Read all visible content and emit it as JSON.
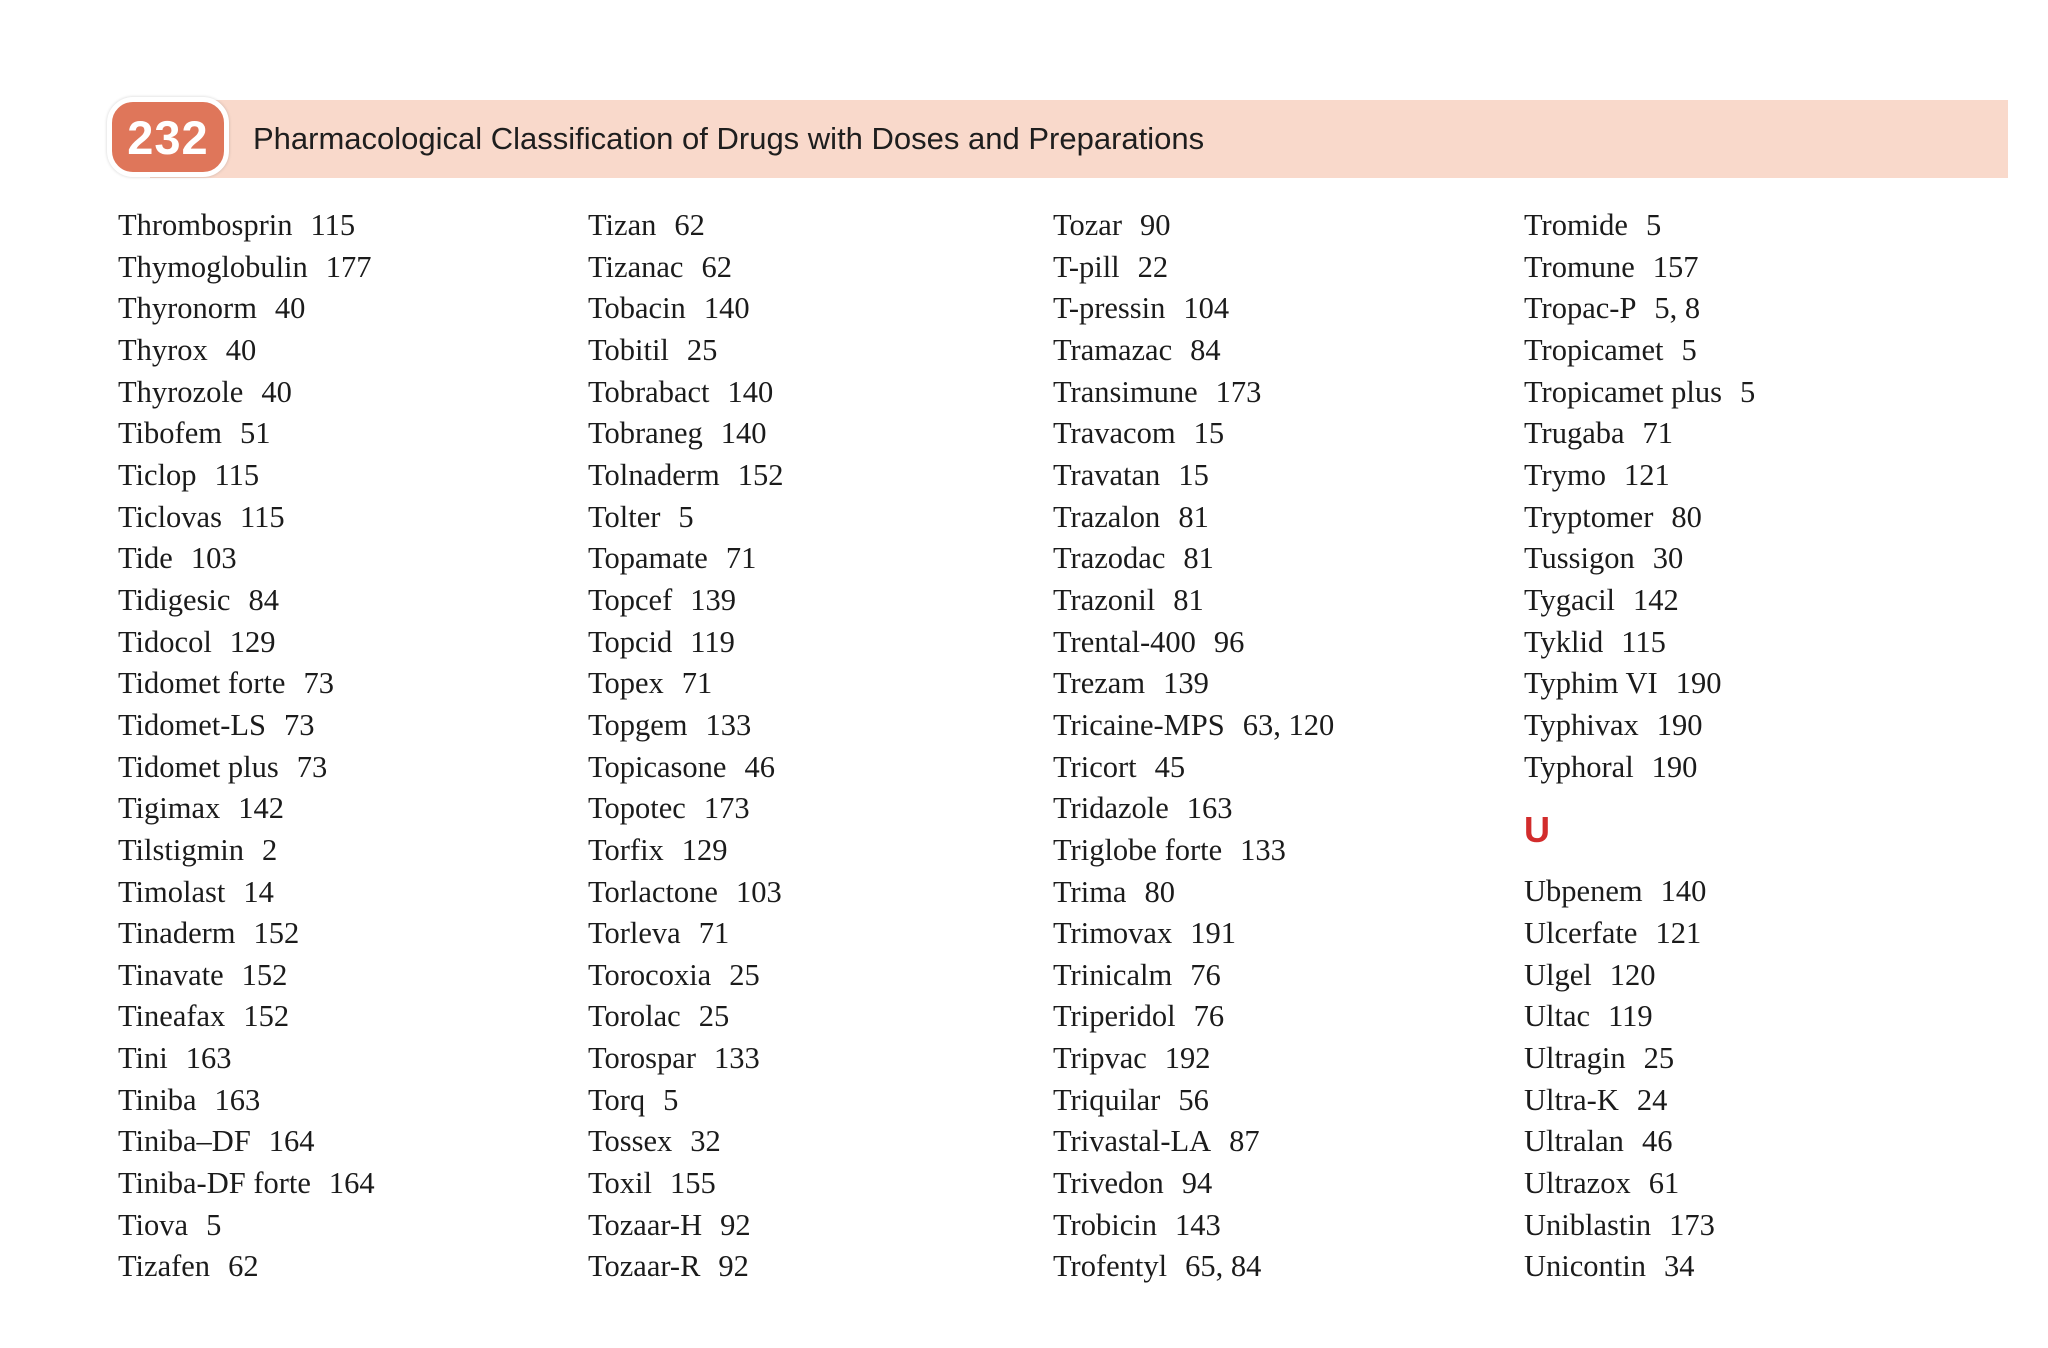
{
  "header": {
    "page_number": "232",
    "title": "Pharmacological Classification of Drugs with Doses and Preparations"
  },
  "colors": {
    "badge_bg": "#df765a",
    "header_bg": "#f9d9cb",
    "section_letter": "#d22c2c",
    "body_text": "#1b1b1b"
  },
  "index": {
    "columns": [
      {
        "entries": [
          {
            "name": "Thrombosprin",
            "page": "115"
          },
          {
            "name": "Thymoglobulin",
            "page": "177"
          },
          {
            "name": "Thyronorm",
            "page": "40"
          },
          {
            "name": "Thyrox",
            "page": "40"
          },
          {
            "name": "Thyrozole",
            "page": "40"
          },
          {
            "name": "Tibofem",
            "page": "51"
          },
          {
            "name": "Ticlop",
            "page": "115"
          },
          {
            "name": "Ticlovas",
            "page": "115"
          },
          {
            "name": "Tide",
            "page": "103"
          },
          {
            "name": "Tidigesic",
            "page": "84"
          },
          {
            "name": "Tidocol",
            "page": "129"
          },
          {
            "name": "Tidomet forte",
            "page": "73"
          },
          {
            "name": "Tidomet-LS",
            "page": "73"
          },
          {
            "name": "Tidomet plus",
            "page": "73"
          },
          {
            "name": "Tigimax",
            "page": "142"
          },
          {
            "name": "Tilstigmin",
            "page": "2"
          },
          {
            "name": "Timolast",
            "page": "14"
          },
          {
            "name": "Tinaderm",
            "page": "152"
          },
          {
            "name": "Tinavate",
            "page": "152"
          },
          {
            "name": "Tineafax",
            "page": "152"
          },
          {
            "name": "Tini",
            "page": "163"
          },
          {
            "name": "Tiniba",
            "page": "163"
          },
          {
            "name": "Tiniba–DF",
            "page": "164"
          },
          {
            "name": "Tiniba-DF forte",
            "page": "164"
          },
          {
            "name": "Tiova",
            "page": "5"
          },
          {
            "name": "Tizafen",
            "page": "62"
          }
        ]
      },
      {
        "entries": [
          {
            "name": "Tizan",
            "page": "62"
          },
          {
            "name": "Tizanac",
            "page": "62"
          },
          {
            "name": "Tobacin",
            "page": "140"
          },
          {
            "name": "Tobitil",
            "page": "25"
          },
          {
            "name": "Tobrabact",
            "page": "140"
          },
          {
            "name": "Tobraneg",
            "page": "140"
          },
          {
            "name": "Tolnaderm",
            "page": "152"
          },
          {
            "name": "Tolter",
            "page": "5"
          },
          {
            "name": "Topamate",
            "page": "71"
          },
          {
            "name": "Topcef",
            "page": "139"
          },
          {
            "name": "Topcid",
            "page": "119"
          },
          {
            "name": "Topex",
            "page": "71"
          },
          {
            "name": "Topgem",
            "page": "133"
          },
          {
            "name": "Topicasone",
            "page": "46"
          },
          {
            "name": "Topotec",
            "page": "173"
          },
          {
            "name": "Torfix",
            "page": "129"
          },
          {
            "name": "Torlactone",
            "page": "103"
          },
          {
            "name": "Torleva",
            "page": "71"
          },
          {
            "name": "Torocoxia",
            "page": "25"
          },
          {
            "name": "Torolac",
            "page": "25"
          },
          {
            "name": "Torospar",
            "page": "133"
          },
          {
            "name": "Torq",
            "page": "5"
          },
          {
            "name": "Tossex",
            "page": "32"
          },
          {
            "name": "Toxil",
            "page": "155"
          },
          {
            "name": "Tozaar-H",
            "page": "92"
          },
          {
            "name": "Tozaar-R",
            "page": "92"
          }
        ]
      },
      {
        "entries": [
          {
            "name": "Tozar",
            "page": "90"
          },
          {
            "name": "T-pill",
            "page": "22"
          },
          {
            "name": "T-pressin",
            "page": "104"
          },
          {
            "name": "Tramazac",
            "page": "84"
          },
          {
            "name": "Transimune",
            "page": "173"
          },
          {
            "name": "Travacom",
            "page": "15"
          },
          {
            "name": "Travatan",
            "page": "15"
          },
          {
            "name": "Trazalon",
            "page": "81"
          },
          {
            "name": "Trazodac",
            "page": "81"
          },
          {
            "name": "Trazonil",
            "page": "81"
          },
          {
            "name": "Trental-400",
            "page": "96"
          },
          {
            "name": "Trezam",
            "page": "139"
          },
          {
            "name": "Tricaine-MPS",
            "page": "63, 120"
          },
          {
            "name": "Tricort",
            "page": "45"
          },
          {
            "name": "Tridazole",
            "page": "163"
          },
          {
            "name": "Triglobe forte",
            "page": "133"
          },
          {
            "name": "Trima",
            "page": "80"
          },
          {
            "name": "Trimovax",
            "page": "191"
          },
          {
            "name": "Trinicalm",
            "page": "76"
          },
          {
            "name": "Triperidol",
            "page": "76"
          },
          {
            "name": "Tripvac",
            "page": "192"
          },
          {
            "name": "Triquilar",
            "page": "56"
          },
          {
            "name": "Trivastal-LA",
            "page": "87"
          },
          {
            "name": "Trivedon",
            "page": "94"
          },
          {
            "name": "Trobicin",
            "page": "143"
          },
          {
            "name": "Trofentyl",
            "page": "65, 84"
          }
        ]
      },
      {
        "entries": [
          {
            "name": "Tromide",
            "page": "5"
          },
          {
            "name": "Tromune",
            "page": "157"
          },
          {
            "name": "Tropac-P",
            "page": "5, 8"
          },
          {
            "name": "Tropicamet",
            "page": "5"
          },
          {
            "name": "Tropicamet plus",
            "page": "5"
          },
          {
            "name": "Trugaba",
            "page": "71"
          },
          {
            "name": "Trymo",
            "page": "121"
          },
          {
            "name": "Tryptomer",
            "page": "80"
          },
          {
            "name": "Tussigon",
            "page": "30"
          },
          {
            "name": "Tygacil",
            "page": "142"
          },
          {
            "name": "Tyklid",
            "page": "115"
          },
          {
            "name": "Typhim VI",
            "page": "190"
          },
          {
            "name": "Typhivax",
            "page": "190"
          },
          {
            "name": "Typhoral",
            "page": "190"
          },
          {
            "section": "U"
          },
          {
            "name": "Ubpenem",
            "page": "140"
          },
          {
            "name": "Ulcerfate",
            "page": "121"
          },
          {
            "name": "Ulgel",
            "page": "120"
          },
          {
            "name": "Ultac",
            "page": "119"
          },
          {
            "name": "Ultragin",
            "page": "25"
          },
          {
            "name": "Ultra-K",
            "page": "24"
          },
          {
            "name": "Ultralan",
            "page": "46"
          },
          {
            "name": "Ultrazox",
            "page": "61"
          },
          {
            "name": "Uniblastin",
            "page": "173"
          },
          {
            "name": "Unicontin",
            "page": "34"
          }
        ]
      }
    ]
  }
}
